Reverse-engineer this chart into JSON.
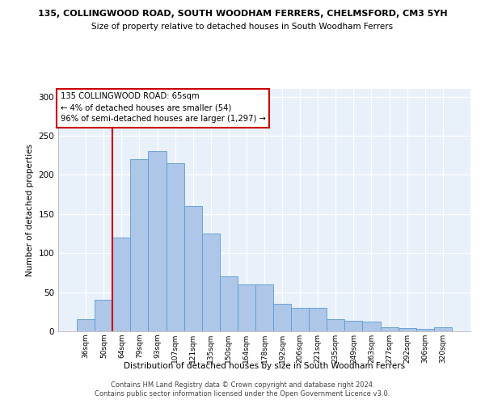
{
  "title": "135, COLLINGWOOD ROAD, SOUTH WOODHAM FERRERS, CHELMSFORD, CM3 5YH",
  "subtitle": "Size of property relative to detached houses in South Woodham Ferrers",
  "xlabel": "Distribution of detached houses by size in South Woodham Ferrers",
  "ylabel": "Number of detached properties",
  "categories": [
    "36sqm",
    "50sqm",
    "64sqm",
    "79sqm",
    "93sqm",
    "107sqm",
    "121sqm",
    "135sqm",
    "150sqm",
    "164sqm",
    "178sqm",
    "192sqm",
    "206sqm",
    "221sqm",
    "235sqm",
    "249sqm",
    "263sqm",
    "277sqm",
    "292sqm",
    "306sqm",
    "320sqm"
  ],
  "bar_heights": [
    15,
    40,
    120,
    220,
    230,
    215,
    160,
    125,
    70,
    60,
    60,
    35,
    30,
    30,
    15,
    13,
    12,
    5,
    4,
    3,
    5
  ],
  "bar_color": "#aec6e8",
  "bar_edge_color": "#5b9bd5",
  "background_color": "#e8f0fa",
  "grid_color": "#ffffff",
  "annotation_box_text": "135 COLLINGWOOD ROAD: 65sqm\n← 4% of detached houses are smaller (54)\n96% of semi-detached houses are larger (1,297) →",
  "annotation_box_color": "#ffffff",
  "annotation_box_edge_color": "#cc0000",
  "vline_color": "#cc0000",
  "footer1": "Contains HM Land Registry data © Crown copyright and database right 2024.",
  "footer2": "Contains public sector information licensed under the Open Government Licence v3.0.",
  "ylim": [
    0,
    310
  ],
  "yticks": [
    0,
    50,
    100,
    150,
    200,
    250,
    300
  ],
  "fig_background": "#ffffff"
}
